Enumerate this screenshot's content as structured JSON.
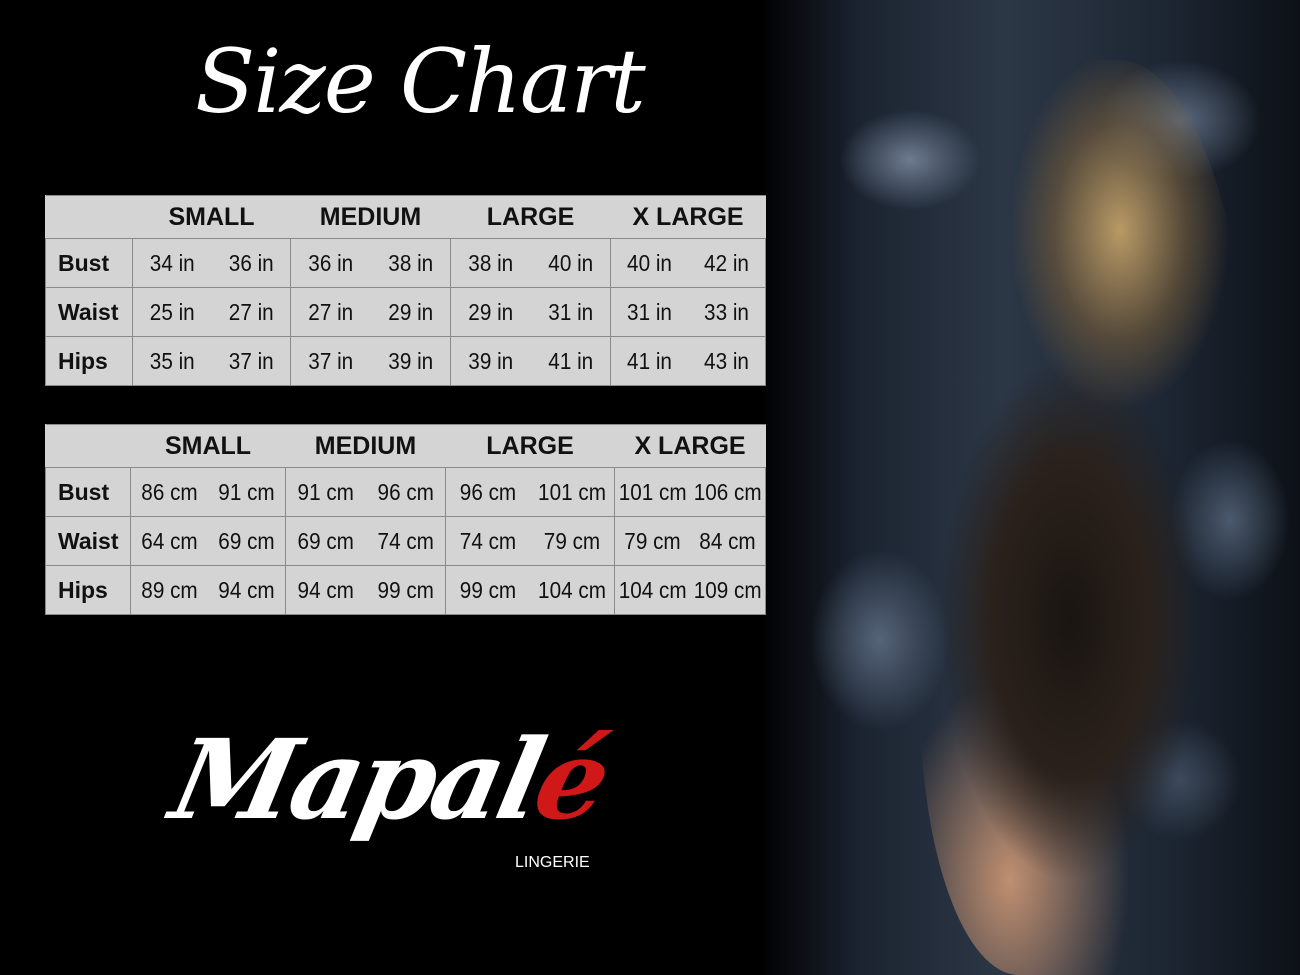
{
  "title": "Size Chart",
  "colors": {
    "table_bg": "#d4d4d4",
    "logo_accent": "#d01818"
  },
  "sizes": [
    "SMALL",
    "MEDIUM",
    "LARGE",
    "X LARGE"
  ],
  "inches": {
    "rows": [
      {
        "label": "Bust",
        "values": [
          "34 in",
          "36 in",
          "36 in",
          "38 in",
          "38 in",
          "40 in",
          "40 in",
          "42 in"
        ]
      },
      {
        "label": "Waist",
        "values": [
          "25 in",
          "27 in",
          "27 in",
          "29 in",
          "29 in",
          "31 in",
          "31 in",
          "33 in"
        ]
      },
      {
        "label": "Hips",
        "values": [
          "35 in",
          "37 in",
          "37 in",
          "39 in",
          "39 in",
          "41 in",
          "41 in",
          "43 in"
        ]
      }
    ]
  },
  "cm": {
    "rows": [
      {
        "label": "Bust",
        "values": [
          "86 cm",
          "91 cm",
          "91 cm",
          "96 cm",
          "96 cm",
          "101 cm",
          "101 cm",
          "106 cm"
        ]
      },
      {
        "label": "Waist",
        "values": [
          "64 cm",
          "69 cm",
          "69 cm",
          "74 cm",
          "74 cm",
          "79  cm",
          "79 cm",
          "84 cm"
        ]
      },
      {
        "label": "Hips",
        "values": [
          "89 cm",
          "94 cm",
          "94 cm",
          "99 cm",
          "99 cm",
          "104 cm",
          "104 cm",
          "109 cm"
        ]
      }
    ]
  },
  "logo": {
    "brand_main": "Mapal",
    "brand_accent": "é",
    "subtitle": "LINGERIE"
  }
}
